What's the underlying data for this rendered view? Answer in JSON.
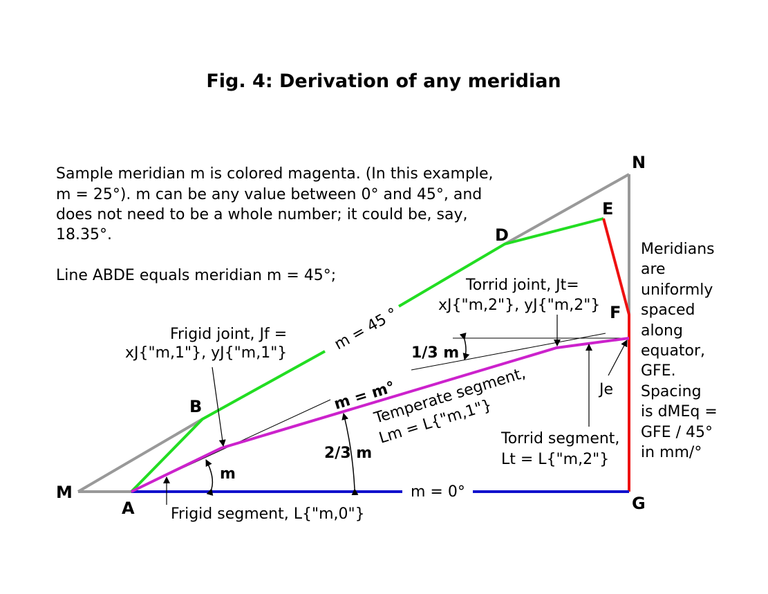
{
  "title": "Fig. 4: Derivation of any meridian",
  "description": {
    "line1": "Sample meridian m is colored magenta. (In this example,",
    "line2": "m = 25°). m can be any value between 0° and 45°, and",
    "line3": "does not need to be a whole number; it could be, say,",
    "line4": "18.35°.",
    "line5": "Line ABDE equals meridian m = 45°;"
  },
  "points": {
    "M": "M",
    "A": "A",
    "B": "B",
    "D": "D",
    "E": "E",
    "N": "N",
    "F": "F",
    "G": "G"
  },
  "labels": {
    "m45": "m = 45 °",
    "m0": "m = 0°",
    "mm": "m = m°",
    "frigid_joint_1": "Frigid joint, Jf =",
    "frigid_joint_2": "xJ{\"m,1\"}, yJ{\"m,1\"}",
    "torrid_joint_1": "Torrid joint, Jt=",
    "torrid_joint_2": "xJ{\"m,2\"}, yJ{\"m,2\"}",
    "one_third": "1/3 m",
    "two_thirds": "2/3 m",
    "m_angle": "m",
    "je": "Je",
    "temperate_1": "Temperate segment,",
    "temperate_2": "Lm = L{\"m,1\"}",
    "torrid_seg_1": "Torrid segment,",
    "torrid_seg_2": "Lt = L{\"m,2\"}",
    "frigid_seg": "Frigid segment, L{\"m,0\"}"
  },
  "side_note": {
    "lines": [
      "Meridians",
      "are",
      "uniformly",
      "spaced",
      "along",
      "equator,",
      "GFE.",
      "Spacing",
      "is dMEq =",
      "GFE / 45°",
      "in mm/°"
    ]
  },
  "colors": {
    "gray": "#999999",
    "green": "#22dd22",
    "red": "#ee1111",
    "blue": "#1111cc",
    "magenta": "#cc22cc",
    "black": "#000000"
  }
}
